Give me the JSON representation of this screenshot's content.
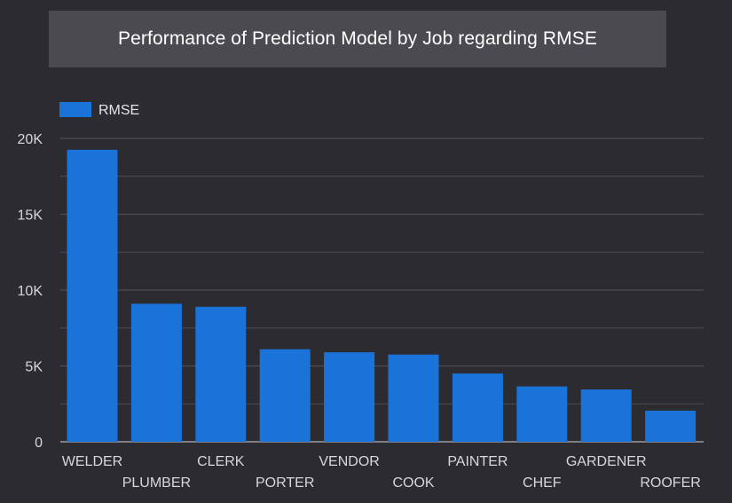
{
  "chart_data": {
    "type": "bar",
    "title": "Performance of Prediction Model by Job regarding RMSE",
    "categories": [
      "WELDER",
      "PLUMBER",
      "CLERK",
      "PORTER",
      "VENDOR",
      "COOK",
      "PAINTER",
      "CHEF",
      "GARDENER",
      "ROOFER"
    ],
    "series": [
      {
        "name": "RMSE",
        "values": [
          19250,
          9100,
          8900,
          6100,
          5900,
          5750,
          4500,
          3650,
          3450,
          2050
        ],
        "color": "#1a73d9"
      }
    ],
    "ylim": [
      0,
      20000
    ],
    "y_ticks": [
      0,
      5000,
      10000,
      15000,
      20000
    ],
    "y_tick_labels": [
      "0",
      "5K",
      "10K",
      "15K",
      "20K"
    ],
    "gridlines": true,
    "legend_position": "top-left",
    "colors": {
      "background": "#2b2b30",
      "title_background": "#4a4a50",
      "gridline": "#4d4d55",
      "axis": "#9a9aa0"
    }
  }
}
